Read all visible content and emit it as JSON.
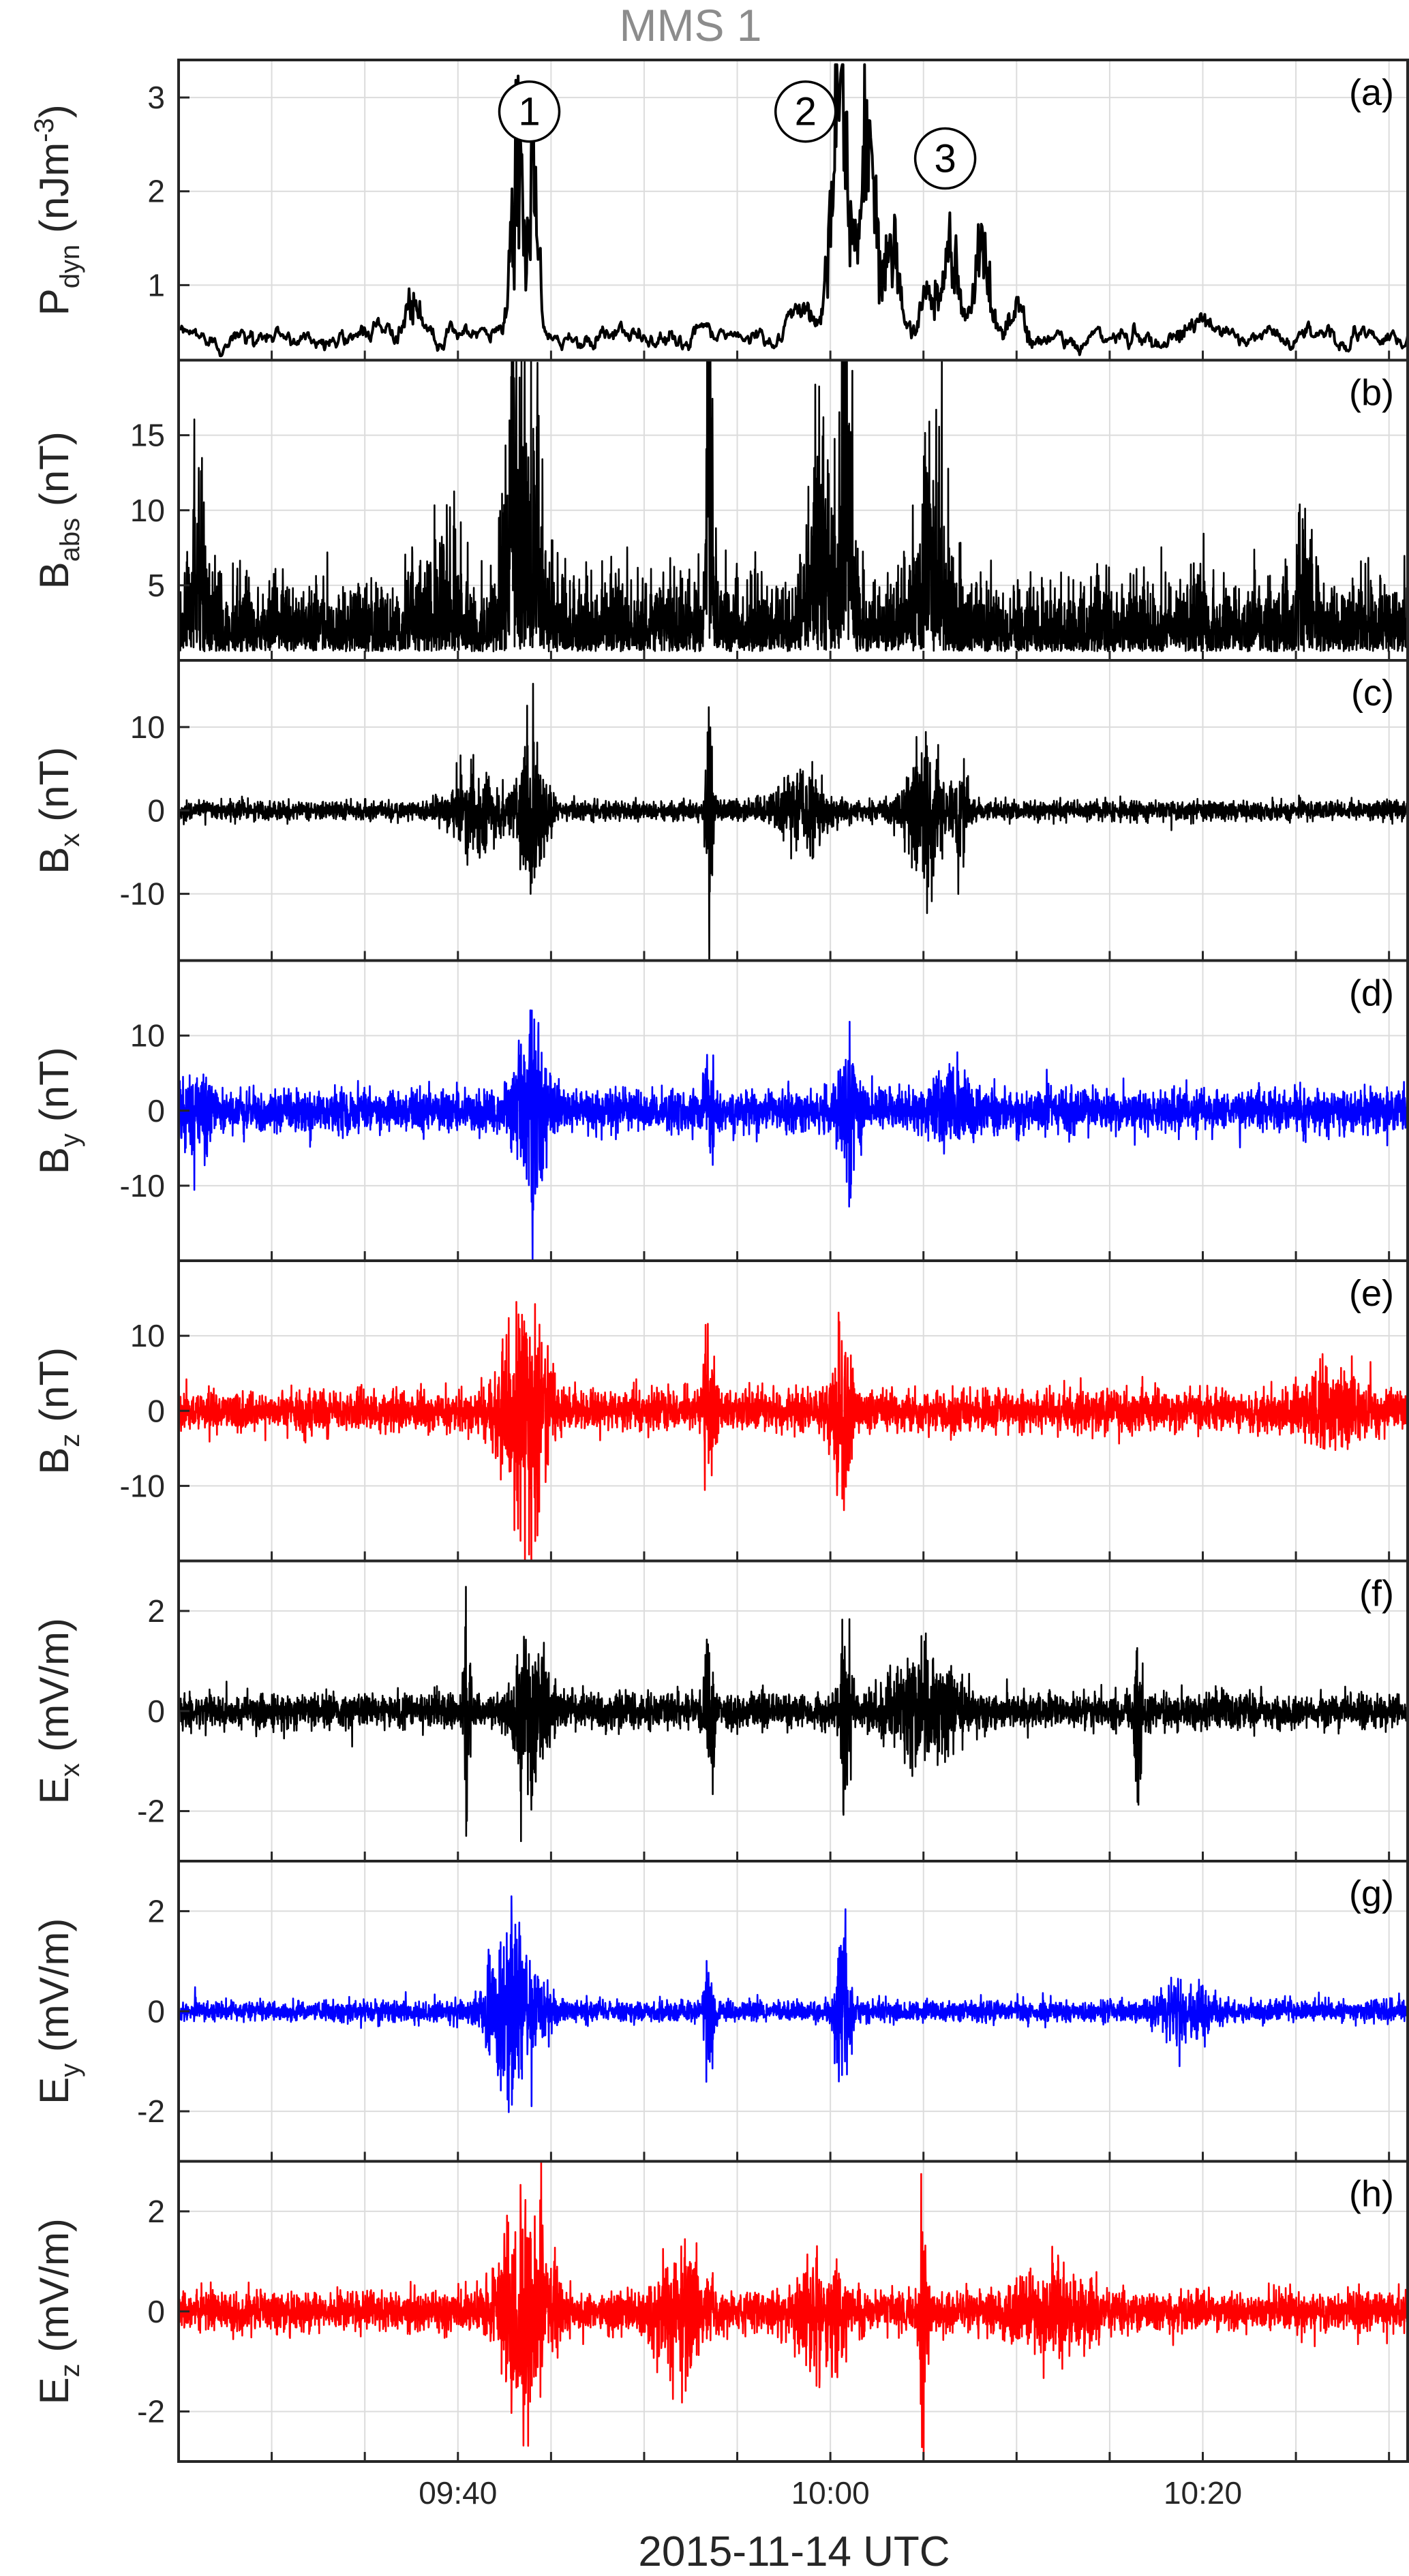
{
  "title": "MMS 1",
  "x_axis_title": "2015-11-14 UTC",
  "chart_data": {
    "type": "line",
    "title": "MMS 1",
    "xlabel": "2015-11-14 UTC",
    "x_unit": "minutes",
    "xlim": [
      "09:25",
      "10:31"
    ],
    "x_ticks": [
      "09:40",
      "10:00",
      "10:20"
    ],
    "x_grid_every_minutes": 5,
    "grid": true,
    "panels": [
      {
        "id": "a",
        "letter": "(a)",
        "ylabel_main": "P",
        "ylabel_sub": "dyn",
        "ylabel_unit": " (nJm",
        "ylabel_sup": "-3",
        "ylabel_close": ")",
        "ylim": [
          0.2,
          3.4
        ],
        "yticks": [
          1,
          2,
          3
        ],
        "ytick_labels": [
          "1",
          "2",
          "3"
        ],
        "color": "#000000",
        "kind": "trace",
        "baseline": 0.45,
        "noise": 0.06,
        "bursts": [
          {
            "t": "09:37:30",
            "amp": 0.35,
            "width_min": 1.2
          },
          {
            "t": "09:43:10",
            "amp": 1.85,
            "width_min": 0.6
          },
          {
            "t": "09:44:05",
            "amp": 1.8,
            "width_min": 0.5
          },
          {
            "t": "09:58:30",
            "amp": 0.3,
            "width_min": 1.0
          },
          {
            "t": "10:00:30",
            "amp": 2.6,
            "width_min": 0.9
          },
          {
            "t": "10:02:00",
            "amp": 2.3,
            "width_min": 0.8
          },
          {
            "t": "10:03:20",
            "amp": 1.0,
            "width_min": 0.8
          },
          {
            "t": "10:05:20",
            "amp": 0.5,
            "width_min": 0.8
          },
          {
            "t": "10:06:30",
            "amp": 0.95,
            "width_min": 0.8
          },
          {
            "t": "10:08:10",
            "amp": 0.9,
            "width_min": 0.8
          },
          {
            "t": "10:10:00",
            "amp": 0.3,
            "width_min": 1.0
          },
          {
            "t": "10:19:30",
            "amp": 0.15,
            "width_min": 1.5
          }
        ],
        "callouts": [
          {
            "label": "1",
            "t": "09:43:50",
            "value": 2.85
          },
          {
            "label": "2",
            "t": "09:58:40",
            "value": 2.85
          },
          {
            "label": "3",
            "t": "10:06:10",
            "value": 2.35
          }
        ]
      },
      {
        "id": "b",
        "letter": "(b)",
        "ylabel_main": "B",
        "ylabel_sub": "abs",
        "ylabel_unit": " (nT)",
        "ylabel_sup": "",
        "ylabel_close": "",
        "ylim": [
          0,
          20
        ],
        "yticks": [
          5,
          10,
          15
        ],
        "ytick_labels": [
          "5",
          "10",
          "15"
        ],
        "color": "#000000",
        "kind": "noise-abs",
        "baseline": 2.5,
        "noise": 2.8,
        "bursts": [
          {
            "t": "09:26:00",
            "amp": 6,
            "width_min": 0.6
          },
          {
            "t": "09:39:00",
            "amp": 3,
            "width_min": 1.5
          },
          {
            "t": "09:43:30",
            "amp": 13,
            "width_min": 1.5
          },
          {
            "t": "09:53:30",
            "amp": 14,
            "width_min": 0.3
          },
          {
            "t": "09:59:30",
            "amp": 7,
            "width_min": 1.2
          },
          {
            "t": "10:00:50",
            "amp": 11,
            "width_min": 0.6
          },
          {
            "t": "10:05:30",
            "amp": 6,
            "width_min": 1.5
          },
          {
            "t": "10:25:30",
            "amp": 4,
            "width_min": 0.6
          }
        ]
      },
      {
        "id": "c",
        "letter": "(c)",
        "ylabel_main": "B",
        "ylabel_sub": "x",
        "ylabel_unit": " (nT)",
        "ylabel_sup": "",
        "ylabel_close": "",
        "ylim": [
          -18,
          18
        ],
        "yticks": [
          -10,
          0,
          10
        ],
        "ytick_labels": [
          "-10",
          "0",
          "10"
        ],
        "color": "#000000",
        "kind": "noise",
        "baseline": 0,
        "noise": 1.0,
        "bursts": [
          {
            "t": "09:41:00",
            "amp": 4,
            "width_min": 2.0
          },
          {
            "t": "09:44:00",
            "amp": 9,
            "width_min": 1.0
          },
          {
            "t": "09:53:30",
            "amp": 11,
            "width_min": 0.3
          },
          {
            "t": "09:58:30",
            "amp": 4,
            "width_min": 2.0
          },
          {
            "t": "10:05:00",
            "amp": 7,
            "width_min": 1.5
          },
          {
            "t": "10:07:00",
            "amp": 6,
            "width_min": 0.6
          }
        ]
      },
      {
        "id": "d",
        "letter": "(d)",
        "ylabel_main": "B",
        "ylabel_sub": "y",
        "ylabel_unit": " (nT)",
        "ylabel_sup": "",
        "ylabel_close": "",
        "ylim": [
          -20,
          20
        ],
        "yticks": [
          -10,
          0,
          10
        ],
        "ytick_labels": [
          "-10",
          "0",
          "10"
        ],
        "color": "#0000ff",
        "kind": "noise",
        "baseline": 0,
        "noise": 2.4,
        "bursts": [
          {
            "t": "09:26:00",
            "amp": 4,
            "width_min": 1.0
          },
          {
            "t": "09:44:00",
            "amp": 11,
            "width_min": 1.2
          },
          {
            "t": "09:53:30",
            "amp": 5,
            "width_min": 0.4
          },
          {
            "t": "10:01:00",
            "amp": 6,
            "width_min": 0.8
          },
          {
            "t": "10:06:30",
            "amp": 3,
            "width_min": 1.5
          }
        ]
      },
      {
        "id": "e",
        "letter": "(e)",
        "ylabel_main": "B",
        "ylabel_sub": "z",
        "ylabel_unit": " (nT)",
        "ylabel_sup": "",
        "ylabel_close": "",
        "ylim": [
          -20,
          20
        ],
        "yticks": [
          -10,
          0,
          10
        ],
        "ytick_labels": [
          "-10",
          "0",
          "10"
        ],
        "color": "#ff0000",
        "kind": "noise",
        "baseline": 0,
        "noise": 2.4,
        "bursts": [
          {
            "t": "09:43:30",
            "amp": 12,
            "width_min": 1.8
          },
          {
            "t": "09:53:30",
            "amp": 12,
            "width_min": 0.4
          },
          {
            "t": "10:00:40",
            "amp": 9,
            "width_min": 0.8
          },
          {
            "t": "10:27:00",
            "amp": 3,
            "width_min": 2.0
          }
        ]
      },
      {
        "id": "f",
        "letter": "(f)",
        "ylabel_main": "E",
        "ylabel_sub": "x",
        "ylabel_unit": " (mV/m)",
        "ylabel_sup": "",
        "ylabel_close": "",
        "ylim": [
          -3,
          3
        ],
        "yticks": [
          -2,
          0,
          2
        ],
        "ytick_labels": [
          "-2",
          "0",
          "2"
        ],
        "color": "#000000",
        "kind": "noise",
        "baseline": 0,
        "noise": 0.3,
        "bursts": [
          {
            "t": "09:40:30",
            "amp": 1.6,
            "width_min": 0.3
          },
          {
            "t": "09:44:00",
            "amp": 1.3,
            "width_min": 1.5
          },
          {
            "t": "09:53:30",
            "amp": 1.2,
            "width_min": 0.4
          },
          {
            "t": "10:00:50",
            "amp": 1.6,
            "width_min": 0.4
          },
          {
            "t": "10:05:00",
            "amp": 0.8,
            "width_min": 3.0
          },
          {
            "t": "10:16:30",
            "amp": 1.4,
            "width_min": 0.3
          }
        ]
      },
      {
        "id": "g",
        "letter": "(g)",
        "ylabel_main": "E",
        "ylabel_sub": "y",
        "ylabel_unit": " (mV/m)",
        "ylabel_sup": "",
        "ylabel_close": "",
        "ylim": [
          -3,
          3
        ],
        "yticks": [
          -2,
          0,
          2
        ],
        "ytick_labels": [
          "-2",
          "0",
          "2"
        ],
        "color": "#0000ff",
        "kind": "noise",
        "baseline": 0,
        "noise": 0.18,
        "bursts": [
          {
            "t": "09:43:00",
            "amp": 1.4,
            "width_min": 2.0
          },
          {
            "t": "09:53:30",
            "amp": 1.0,
            "width_min": 0.4
          },
          {
            "t": "10:00:40",
            "amp": 1.3,
            "width_min": 0.6
          },
          {
            "t": "10:19:00",
            "amp": 0.5,
            "width_min": 2.0
          }
        ]
      },
      {
        "id": "h",
        "letter": "(h)",
        "ylabel_main": "E",
        "ylabel_sub": "z",
        "ylabel_unit": " (mV/m)",
        "ylabel_sup": "",
        "ylabel_close": "",
        "ylim": [
          -3,
          3
        ],
        "yticks": [
          -2,
          0,
          2
        ],
        "ytick_labels": [
          "-2",
          "0",
          "2"
        ],
        "color": "#ff0000",
        "kind": "noise",
        "baseline": 0,
        "noise": 0.35,
        "bursts": [
          {
            "t": "09:43:30",
            "amp": 2.2,
            "width_min": 1.8
          },
          {
            "t": "09:52:00",
            "amp": 0.8,
            "width_min": 2.0
          },
          {
            "t": "09:59:30",
            "amp": 0.9,
            "width_min": 2.0
          },
          {
            "t": "10:05:00",
            "amp": 2.0,
            "width_min": 0.3
          },
          {
            "t": "10:12:00",
            "amp": 0.5,
            "width_min": 3.0
          }
        ]
      }
    ]
  }
}
